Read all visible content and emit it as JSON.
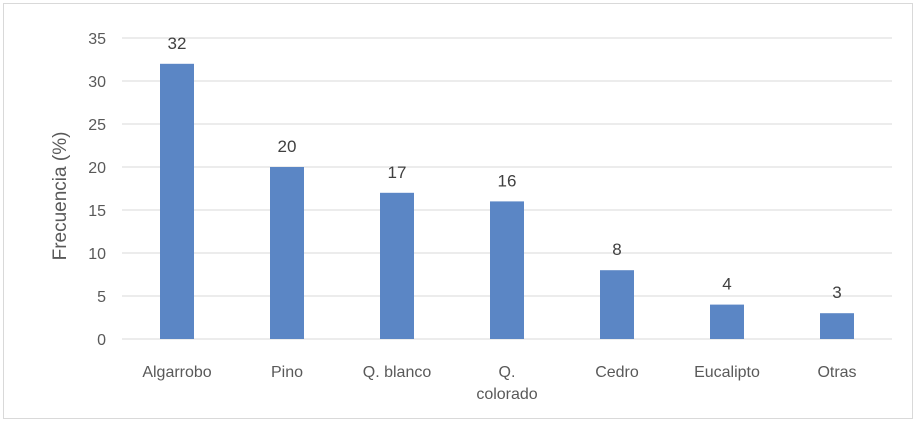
{
  "chart_data": {
    "type": "bar",
    "title": "",
    "xlabel": "",
    "ylabel": "Frecuencia (%)",
    "ylim": [
      0,
      35
    ],
    "yticks": [
      0,
      5,
      10,
      15,
      20,
      25,
      30,
      35
    ],
    "grid": true,
    "categories": [
      [
        "Algarrobo"
      ],
      [
        "Pino"
      ],
      [
        "Q. blanco"
      ],
      [
        "Q.",
        "colorado"
      ],
      [
        "Cedro"
      ],
      [
        "Eucalipto"
      ],
      [
        "Otras"
      ]
    ],
    "values": [
      32,
      20,
      17,
      16,
      8,
      4,
      3
    ],
    "data_labels": [
      "32",
      "20",
      "17",
      "16",
      "8",
      "4",
      "3"
    ],
    "colors": {
      "bar": "#5b86c5",
      "grid": "#d9d9d9",
      "text": "#595959"
    }
  }
}
